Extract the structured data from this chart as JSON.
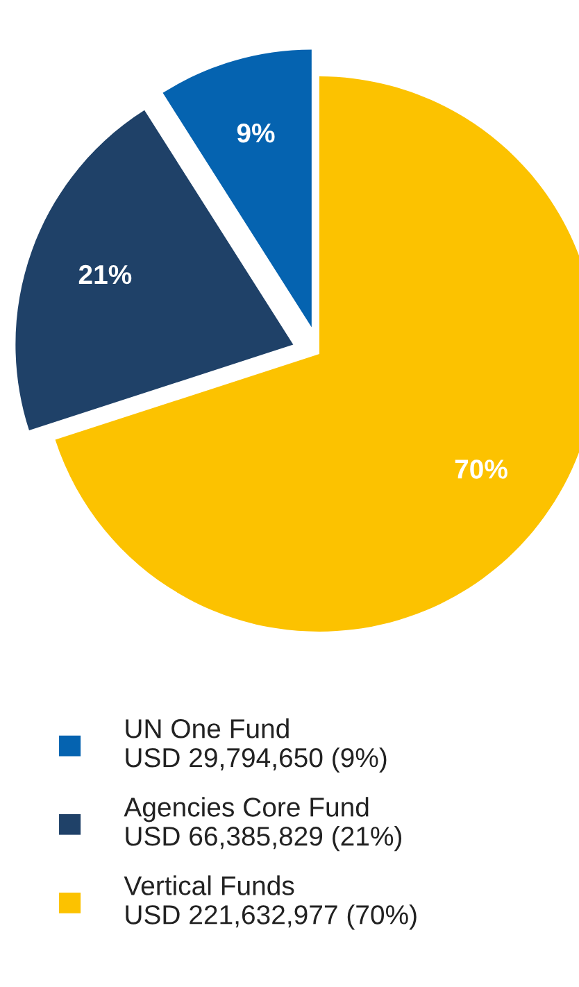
{
  "chart_data": {
    "type": "pie",
    "categories": [
      "UN One Fund\nUSD 29,794,650 (9%)",
      "Agencies Core Fund\nUSD 66,385,829 (21%)",
      "Vertical Funds\nUSD 221,632,977 (70%)"
    ],
    "values": [
      9,
      21,
      70
    ],
    "colors": [
      "#0563b0",
      "#1f4168",
      "#fcc200"
    ],
    "value_labels": [
      "9%",
      "21%",
      "70%"
    ],
    "legend": "bottom"
  }
}
